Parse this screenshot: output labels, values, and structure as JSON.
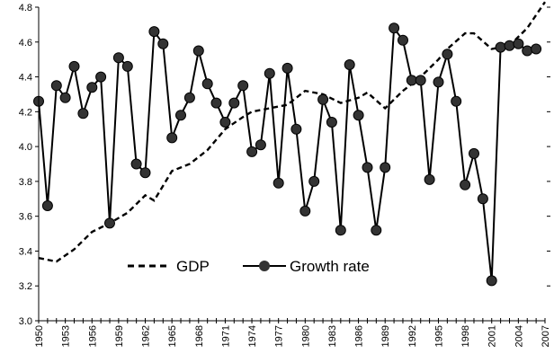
{
  "chart_data": {
    "type": "line",
    "title": "",
    "xlabel": "",
    "ylabel": "",
    "xlim": [
      1950,
      2007
    ],
    "ylim": [
      3.0,
      4.8
    ],
    "y_ticks": [
      "3.0",
      "3.2",
      "3.4",
      "3.6",
      "3.8",
      "4.0",
      "4.2",
      "4.4",
      "4.6",
      "4.8"
    ],
    "x_ticks": [
      "1950",
      "1953",
      "1956",
      "1959",
      "1962",
      "1965",
      "1968",
      "1971",
      "1974",
      "1977",
      "1980",
      "1983",
      "1986",
      "1989",
      "1992",
      "1995",
      "1998",
      "2001",
      "2004",
      "2007"
    ],
    "grid": false,
    "legend_position": "bottom-left",
    "series": [
      {
        "name": "GDP",
        "style": "dashed",
        "color": "#000000",
        "points": [
          [
            1950,
            3.36
          ],
          [
            1952,
            3.34
          ],
          [
            1954,
            3.41
          ],
          [
            1956,
            3.51
          ],
          [
            1958,
            3.56
          ],
          [
            1960,
            3.62
          ],
          [
            1962,
            3.72
          ],
          [
            1963,
            3.69
          ],
          [
            1965,
            3.86
          ],
          [
            1967,
            3.9
          ],
          [
            1969,
            3.98
          ],
          [
            1971,
            4.1
          ],
          [
            1973,
            4.17
          ],
          [
            1974,
            4.2
          ],
          [
            1976,
            4.22
          ],
          [
            1978,
            4.24
          ],
          [
            1980,
            4.32
          ],
          [
            1982,
            4.3
          ],
          [
            1984,
            4.25
          ],
          [
            1986,
            4.28
          ],
          [
            1987,
            4.31
          ],
          [
            1989,
            4.22
          ],
          [
            1991,
            4.32
          ],
          [
            1993,
            4.4
          ],
          [
            1995,
            4.5
          ],
          [
            1996,
            4.56
          ],
          [
            1998,
            4.65
          ],
          [
            1999,
            4.65
          ],
          [
            2001,
            4.56
          ],
          [
            2003,
            4.58
          ],
          [
            2005,
            4.68
          ],
          [
            2007,
            4.83
          ]
        ]
      },
      {
        "name": "Growth rate",
        "style": "solid-markers",
        "color": "#000000",
        "points": [
          [
            1950,
            4.26
          ],
          [
            1951,
            3.66
          ],
          [
            1952,
            4.35
          ],
          [
            1953,
            4.28
          ],
          [
            1954,
            4.46
          ],
          [
            1955,
            4.19
          ],
          [
            1956,
            4.34
          ],
          [
            1957,
            4.4
          ],
          [
            1958,
            3.56
          ],
          [
            1959,
            4.51
          ],
          [
            1960,
            4.46
          ],
          [
            1961,
            3.9
          ],
          [
            1962,
            3.85
          ],
          [
            1963,
            4.66
          ],
          [
            1964,
            4.59
          ],
          [
            1965,
            4.05
          ],
          [
            1966,
            4.18
          ],
          [
            1967,
            4.28
          ],
          [
            1968,
            4.55
          ],
          [
            1969,
            4.36
          ],
          [
            1970,
            4.25
          ],
          [
            1971,
            4.14
          ],
          [
            1972,
            4.25
          ],
          [
            1973,
            4.35
          ],
          [
            1974,
            3.97
          ],
          [
            1975,
            4.01
          ],
          [
            1976,
            4.42
          ],
          [
            1977,
            3.79
          ],
          [
            1978,
            4.45
          ],
          [
            1979,
            4.1
          ],
          [
            1980,
            3.63
          ],
          [
            1981,
            3.8
          ],
          [
            1982,
            4.27
          ],
          [
            1983,
            4.14
          ],
          [
            1984,
            3.52
          ],
          [
            1985,
            4.47
          ],
          [
            1986,
            4.18
          ],
          [
            1987,
            3.88
          ],
          [
            1988,
            3.52
          ],
          [
            1989,
            3.88
          ],
          [
            1990,
            4.68
          ],
          [
            1991,
            4.61
          ],
          [
            1992,
            4.38
          ],
          [
            1993,
            4.38
          ],
          [
            1994,
            3.81
          ],
          [
            1995,
            4.37
          ],
          [
            1996,
            4.53
          ],
          [
            1997,
            4.26
          ],
          [
            1998,
            3.78
          ],
          [
            1999,
            3.96
          ],
          [
            2000,
            3.7
          ],
          [
            2001,
            3.23
          ],
          [
            2002,
            4.57
          ],
          [
            2003,
            4.58
          ],
          [
            2004,
            4.59
          ],
          [
            2005,
            4.55
          ],
          [
            2006,
            4.56
          ]
        ]
      }
    ]
  }
}
